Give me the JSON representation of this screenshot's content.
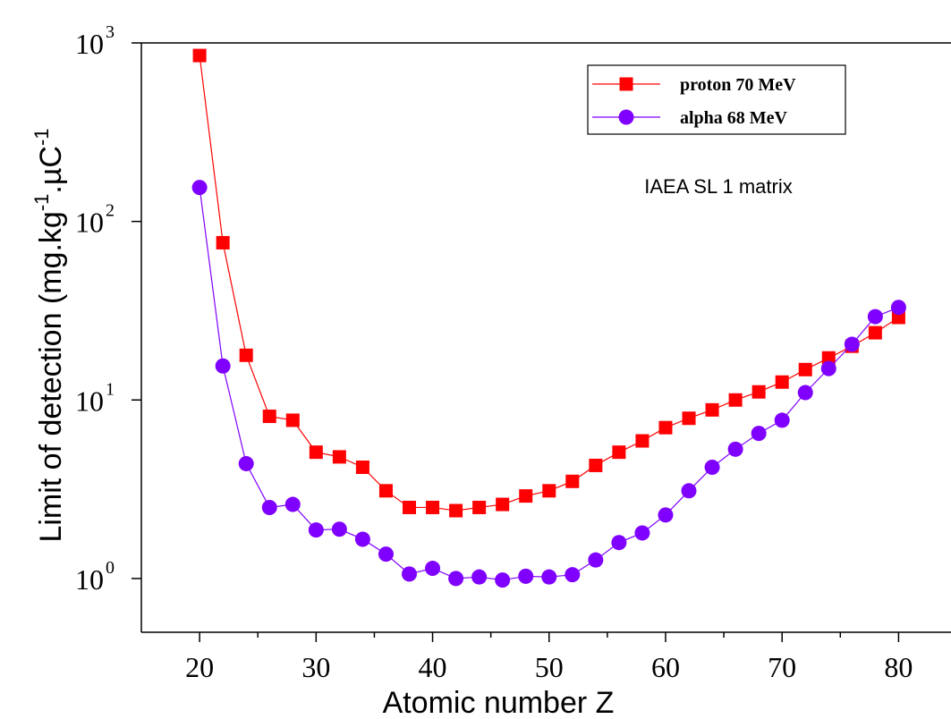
{
  "chart_data": {
    "type": "line",
    "x_label": "Atomic number Z",
    "y_label": [
      "Limit of detection (mg.kg",
      "-1",
      ".µC",
      "-1"
    ],
    "annotation": "IAEA SL 1 matrix",
    "y_log": true,
    "x": [
      20,
      22,
      24,
      26,
      28,
      30,
      32,
      34,
      36,
      38,
      40,
      42,
      44,
      46,
      48,
      50,
      52,
      54,
      56,
      58,
      60,
      62,
      64,
      66,
      68,
      70,
      72,
      74,
      76,
      78,
      80
    ],
    "series": [
      {
        "name": "proton 70 MeV",
        "color": "#ff0000",
        "marker": "square",
        "values": [
          850,
          76,
          17.8,
          8.1,
          7.7,
          5.1,
          4.8,
          4.2,
          3.1,
          2.5,
          2.5,
          2.4,
          2.5,
          2.6,
          2.9,
          3.1,
          3.5,
          4.3,
          5.1,
          5.9,
          7.0,
          7.9,
          8.8,
          10,
          11.1,
          12.6,
          14.8,
          17.2,
          20,
          23.8,
          29
        ]
      },
      {
        "name": "alpha 68 MeV",
        "color": "#7f00ff",
        "marker": "circle",
        "values": [
          155,
          15.5,
          4.4,
          2.5,
          2.6,
          1.87,
          1.89,
          1.66,
          1.37,
          1.06,
          1.14,
          1.0,
          1.02,
          0.98,
          1.03,
          1.02,
          1.05,
          1.27,
          1.59,
          1.8,
          2.27,
          3.1,
          4.2,
          5.3,
          6.5,
          7.7,
          11,
          15,
          20.5,
          29.3,
          33
        ]
      }
    ],
    "xlim": [
      15,
      84.5
    ],
    "xticks": [
      20,
      30,
      40,
      50,
      60,
      70,
      80
    ],
    "xminorticks": [
      25,
      35,
      45,
      55,
      65,
      75
    ],
    "ylim": [
      0.5,
      1000
    ],
    "yticks": [
      {
        "value": 1,
        "label": "10",
        "exponent": "0"
      },
      {
        "value": 10,
        "label": "10",
        "exponent": "1"
      },
      {
        "value": 100,
        "label": "10",
        "exponent": "2"
      },
      {
        "value": 1000,
        "label": "10",
        "exponent": "3"
      }
    ]
  }
}
